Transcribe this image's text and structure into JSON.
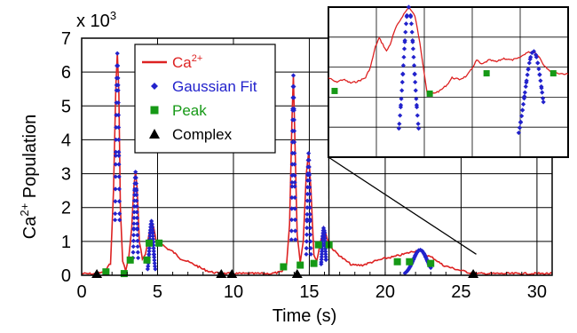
{
  "chart_data": {
    "type": "line",
    "xlabel": "Time (s)",
    "ylabel_main": "Ca",
    "ylabel_sup": "2+",
    "ylabel_rest": " Population",
    "multiplier_base": "x 10",
    "multiplier_exp": "3",
    "xlim": [
      0,
      31
    ],
    "ylim": [
      0,
      7
    ],
    "x_ticks": [
      0,
      5,
      10,
      15,
      20,
      25,
      30
    ],
    "y_ticks": [
      0,
      1,
      2,
      3,
      4,
      5,
      6,
      7
    ],
    "grid": true,
    "legend_position": "top-left",
    "colors": {
      "ca": "#dd2222",
      "fit": "#2222cc",
      "peak": "#169916",
      "complex": "#000000"
    },
    "legend": [
      {
        "label_main": "Ca",
        "label_sup": "2+",
        "marker": "line",
        "color": "#dd2222"
      },
      {
        "label_main": "Gaussian Fit",
        "label_sup": "",
        "marker": "diamond",
        "color": "#2222cc"
      },
      {
        "label_main": "Peak",
        "label_sup": "",
        "marker": "square",
        "color": "#169916"
      },
      {
        "label_main": "Complex",
        "label_sup": "",
        "marker": "triangle",
        "color": "#000000"
      }
    ],
    "ca_trace": [
      [
        0,
        0.05
      ],
      [
        1.0,
        0.04
      ],
      [
        1.5,
        0.1
      ],
      [
        1.9,
        0.35
      ],
      [
        2.1,
        2.5
      ],
      [
        2.25,
        5.6
      ],
      [
        2.35,
        6.55
      ],
      [
        2.45,
        5.4
      ],
      [
        2.55,
        2.0
      ],
      [
        2.7,
        0.4
      ],
      [
        2.9,
        0.15
      ],
      [
        3.1,
        0.5
      ],
      [
        3.3,
        1.4
      ],
      [
        3.45,
        2.7
      ],
      [
        3.55,
        3.05
      ],
      [
        3.65,
        2.6
      ],
      [
        3.8,
        1.0
      ],
      [
        4.0,
        0.5
      ],
      [
        4.2,
        0.6
      ],
      [
        4.45,
        1.25
      ],
      [
        4.6,
        1.6
      ],
      [
        4.75,
        1.4
      ],
      [
        4.9,
        1.0
      ],
      [
        5.2,
        0.95
      ],
      [
        5.6,
        0.8
      ],
      [
        6.0,
        0.7
      ],
      [
        6.5,
        0.5
      ],
      [
        7.0,
        0.4
      ],
      [
        7.5,
        0.3
      ],
      [
        8.0,
        0.18
      ],
      [
        8.5,
        0.1
      ],
      [
        9.0,
        0.06
      ],
      [
        9.5,
        0.05
      ],
      [
        12.5,
        0.05
      ],
      [
        13.2,
        0.1
      ],
      [
        13.5,
        0.3
      ],
      [
        13.7,
        1.5
      ],
      [
        13.85,
        4.5
      ],
      [
        13.95,
        5.9
      ],
      [
        14.05,
        4.0
      ],
      [
        14.2,
        1.2
      ],
      [
        14.4,
        0.4
      ],
      [
        14.6,
        1.0
      ],
      [
        14.8,
        3.0
      ],
      [
        14.95,
        3.6
      ],
      [
        15.1,
        2.6
      ],
      [
        15.3,
        0.6
      ],
      [
        15.5,
        0.45
      ],
      [
        15.75,
        1.0
      ],
      [
        15.95,
        1.4
      ],
      [
        16.1,
        1.2
      ],
      [
        16.3,
        0.9
      ],
      [
        16.7,
        0.7
      ],
      [
        17.2,
        0.5
      ],
      [
        17.8,
        0.3
      ],
      [
        18.5,
        0.3
      ],
      [
        19.2,
        0.4
      ],
      [
        20.0,
        0.5
      ],
      [
        20.6,
        0.55
      ],
      [
        21.2,
        0.62
      ],
      [
        21.8,
        0.7
      ],
      [
        22.3,
        0.75
      ],
      [
        22.7,
        0.6
      ],
      [
        23.2,
        0.5
      ],
      [
        23.8,
        0.3
      ],
      [
        24.5,
        0.2
      ],
      [
        25.5,
        0.08
      ],
      [
        26.0,
        0.05
      ],
      [
        31,
        0.05
      ]
    ],
    "fits": [
      {
        "center": 2.35,
        "height": 6.55,
        "width": 0.09,
        "from": 2.2,
        "to": 2.5
      },
      {
        "center": 3.55,
        "height": 3.05,
        "width": 0.09,
        "from": 3.38,
        "to": 3.72
      },
      {
        "center": 4.6,
        "height": 1.6,
        "width": 0.12,
        "from": 4.35,
        "to": 4.85
      },
      {
        "center": 13.95,
        "height": 5.9,
        "width": 0.07,
        "from": 13.82,
        "to": 14.08
      },
      {
        "center": 14.95,
        "height": 3.6,
        "width": 0.08,
        "from": 14.8,
        "to": 15.1
      },
      {
        "center": 15.95,
        "height": 1.4,
        "width": 0.1,
        "from": 15.78,
        "to": 16.1
      },
      {
        "center": 22.3,
        "height": 0.75,
        "width": 0.45,
        "from": 21.3,
        "to": 23.0
      }
    ],
    "peaks": [
      [
        1.6,
        0.1
      ],
      [
        2.8,
        0.05
      ],
      [
        3.2,
        0.45
      ],
      [
        4.3,
        0.45
      ],
      [
        4.45,
        0.95
      ],
      [
        5.1,
        0.95
      ],
      [
        13.3,
        0.25
      ],
      [
        14.4,
        0.3
      ],
      [
        15.3,
        0.35
      ],
      [
        15.6,
        0.9
      ],
      [
        16.3,
        0.9
      ],
      [
        20.8,
        0.4
      ],
      [
        21.6,
        0.4
      ],
      [
        23.0,
        0.35
      ]
    ],
    "complexes": [
      1.0,
      9.2,
      9.9,
      14.2,
      25.8
    ],
    "inset": {
      "x_range": [
        16.3,
        26.0
      ],
      "y_range": [
        0,
        1.7
      ],
      "grid_cols": 5,
      "grid_rows": 5,
      "trace": [
        [
          16.3,
          0.9
        ],
        [
          16.6,
          0.85
        ],
        [
          16.9,
          0.88
        ],
        [
          17.2,
          0.84
        ],
        [
          17.5,
          0.86
        ],
        [
          17.8,
          0.9
        ],
        [
          18.0,
          1.02
        ],
        [
          18.2,
          1.25
        ],
        [
          18.35,
          1.35
        ],
        [
          18.5,
          1.28
        ],
        [
          18.65,
          1.2
        ],
        [
          18.8,
          1.28
        ],
        [
          19.0,
          1.45
        ],
        [
          19.3,
          1.6
        ],
        [
          19.55,
          1.7
        ],
        [
          19.8,
          1.6
        ],
        [
          20.0,
          1.3
        ],
        [
          20.15,
          1.0
        ],
        [
          20.3,
          0.72
        ],
        [
          20.5,
          0.72
        ],
        [
          20.8,
          0.75
        ],
        [
          21.1,
          0.82
        ],
        [
          21.3,
          0.9
        ],
        [
          21.6,
          0.88
        ],
        [
          21.9,
          0.92
        ],
        [
          22.1,
          1.0
        ],
        [
          22.3,
          1.1
        ],
        [
          22.5,
          1.05
        ],
        [
          22.8,
          1.1
        ],
        [
          23.1,
          1.08
        ],
        [
          23.4,
          1.12
        ],
        [
          23.7,
          1.1
        ],
        [
          24.0,
          1.12
        ],
        [
          24.3,
          1.18
        ],
        [
          24.6,
          1.2
        ],
        [
          24.8,
          1.15
        ],
        [
          25.0,
          1.05
        ],
        [
          25.3,
          0.97
        ],
        [
          25.6,
          0.95
        ],
        [
          26.0,
          0.94
        ]
      ],
      "fits": [
        {
          "center": 19.55,
          "height": 1.7,
          "width": 0.22,
          "from": 19.15,
          "to": 19.95
        },
        {
          "center": 24.6,
          "height": 1.2,
          "width": 0.35,
          "from": 24.0,
          "to": 25.0
        }
      ],
      "peaks": [
        [
          16.55,
          0.75
        ],
        [
          20.4,
          0.72
        ],
        [
          22.7,
          0.95
        ],
        [
          25.4,
          0.95
        ]
      ]
    }
  }
}
